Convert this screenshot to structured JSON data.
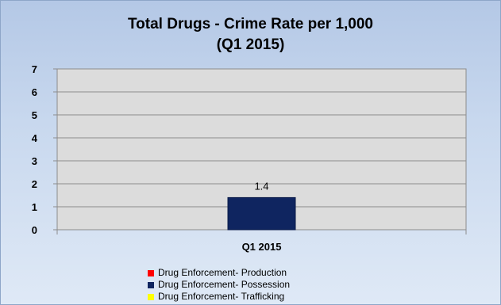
{
  "chart_data": {
    "type": "bar",
    "title": "Total Drugs - Crime Rate per 1,000",
    "subtitle": "(Q1 2015)",
    "categories": [
      "Q1 2015"
    ],
    "ylim": [
      0,
      7
    ],
    "yticks": [
      0,
      1,
      2,
      3,
      4,
      5,
      6,
      7
    ],
    "grid": true,
    "legend_position": "bottom",
    "series": [
      {
        "name": "Drug Enforcement- Production",
        "color": "#ff0000",
        "values": [
          null
        ],
        "labels": [
          ""
        ]
      },
      {
        "name": "Drug Enforcement- Possession",
        "color": "#0f2560",
        "values": [
          1.4
        ],
        "labels": [
          "1.4"
        ]
      },
      {
        "name": "Drug Enforcement- Trafficking",
        "color": "#ffff00",
        "values": [
          null
        ],
        "labels": [
          ""
        ]
      }
    ]
  }
}
